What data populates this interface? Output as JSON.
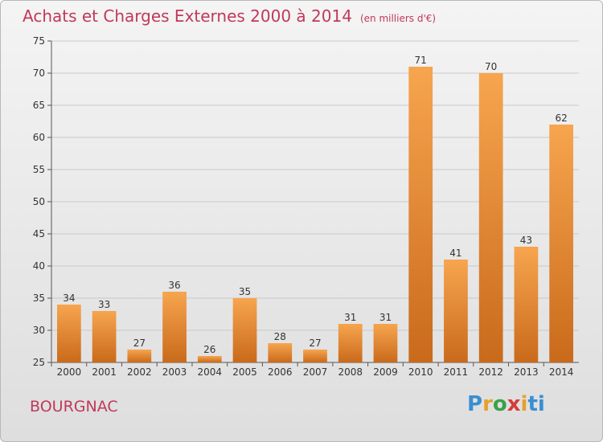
{
  "title": "Achats et Charges Externes 2000 à 2014",
  "subtitle": "(en milliers d'€)",
  "commune": "BOURGNAC",
  "logo": [
    "P",
    "r",
    "o",
    "x",
    "i",
    "ti"
  ],
  "colors": {
    "bar_light": "#f7a54f",
    "bar_dark": "#c96a1b",
    "title": "#c0395a"
  },
  "chart_data": {
    "type": "bar",
    "categories": [
      "2000",
      "2001",
      "2002",
      "2003",
      "2004",
      "2005",
      "2006",
      "2007",
      "2008",
      "2009",
      "2010",
      "2011",
      "2012",
      "2013",
      "2014"
    ],
    "values": [
      34,
      33,
      27,
      36,
      26,
      35,
      28,
      27,
      31,
      31,
      71,
      41,
      70,
      43,
      62
    ],
    "ylim": [
      25,
      75
    ],
    "yticks": [
      25,
      30,
      35,
      40,
      45,
      50,
      55,
      60,
      65,
      70,
      75
    ],
    "grid": true
  }
}
